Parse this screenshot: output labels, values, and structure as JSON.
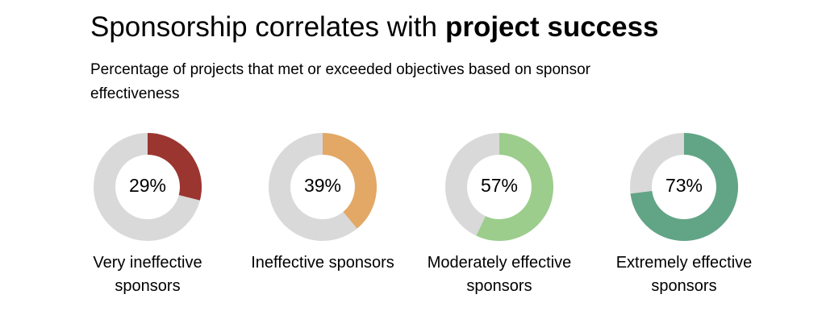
{
  "chart_data": {
    "type": "donut",
    "title": "Sponsorship correlates with",
    "title_emphasis": "project success",
    "subtitle": "Percentage of projects that met or exceeded objectives based on sponsor effectiveness",
    "categories": [
      "Very ineffective sponsors",
      "Ineffective sponsors",
      "Moderately effective sponsors",
      "Extremely effective sponsors"
    ],
    "values": [
      29,
      39,
      57,
      73
    ],
    "value_labels": [
      "29%",
      "39%",
      "57%",
      "73%"
    ],
    "colors": [
      "#9b3530",
      "#e3a865",
      "#9ccd8c",
      "#62a586"
    ],
    "track_color": "#d9d9d9",
    "total": 100
  }
}
